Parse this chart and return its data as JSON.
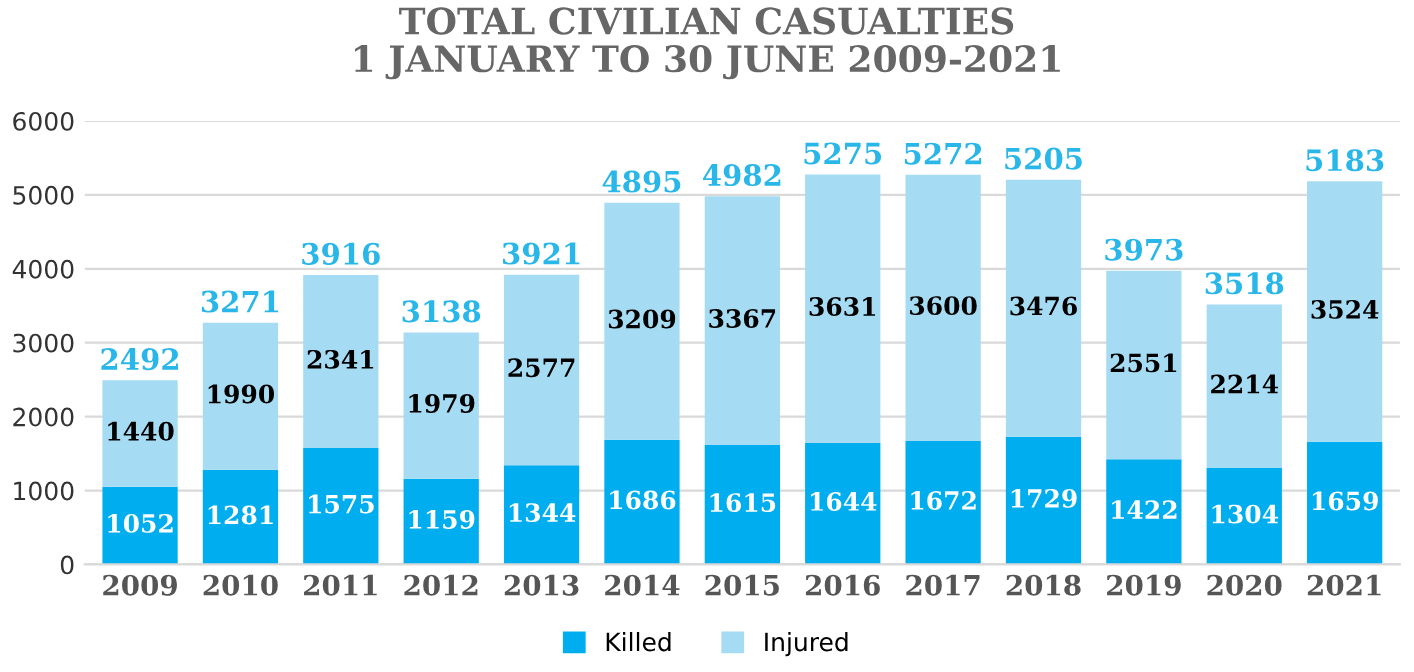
{
  "chart_data": {
    "type": "bar",
    "title": "TOTAL CIVILIAN CASUALTIES\n1 JANUARY TO 30 JUNE 2009-2021",
    "categories": [
      "2009",
      "2010",
      "2011",
      "2012",
      "2013",
      "2014",
      "2015",
      "2016",
      "2017",
      "2018",
      "2019",
      "2020",
      "2021"
    ],
    "stacked": true,
    "series": [
      {
        "name": "Killed",
        "color": "#00aeef",
        "values": [
          1052,
          1281,
          1575,
          1159,
          1344,
          1686,
          1615,
          1644,
          1672,
          1729,
          1422,
          1304,
          1659
        ]
      },
      {
        "name": "Injured",
        "color": "#a6dcf3",
        "values": [
          1440,
          1990,
          2341,
          1979,
          2577,
          3209,
          3367,
          3631,
          3600,
          3476,
          2551,
          2214,
          3524
        ]
      }
    ],
    "totals": [
      "2492",
      "3271",
      "3916",
      "3138",
      "3921",
      "4895",
      "4982",
      "5275",
      "5272",
      "5205",
      "3973",
      "3518",
      "5183"
    ],
    "data_labels": true,
    "ylim": [
      0,
      6000
    ],
    "yticks": [
      0,
      1000,
      2000,
      3000,
      4000,
      5000,
      6000
    ],
    "grid": "y",
    "legend": "bottom"
  }
}
